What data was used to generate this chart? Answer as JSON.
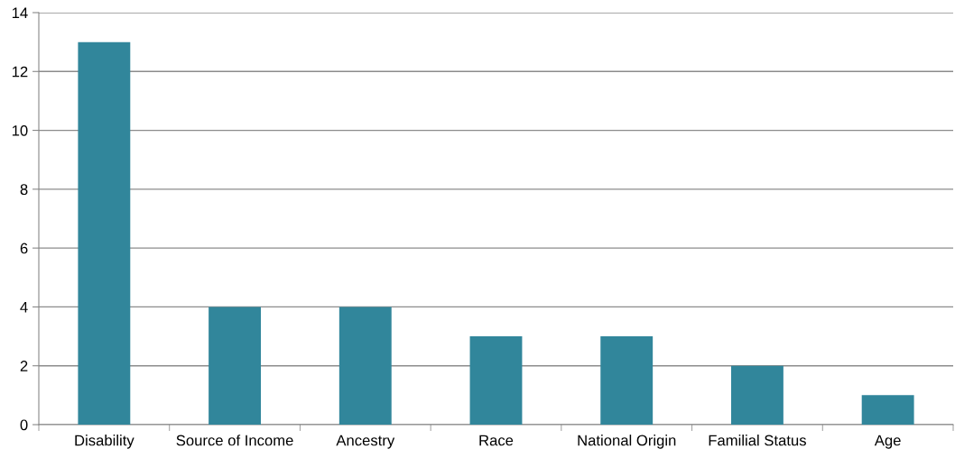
{
  "chart_data": {
    "type": "bar",
    "categories": [
      "Disability",
      "Source of Income",
      "Ancestry",
      "Race",
      "National Origin",
      "Familial Status",
      "Age"
    ],
    "values": [
      13,
      4,
      4,
      3,
      3,
      2,
      1
    ],
    "color": "#31869b",
    "ylim": [
      0,
      14
    ],
    "yticks": [
      0,
      2,
      4,
      6,
      8,
      10,
      12,
      14
    ],
    "grid": "y",
    "legend": false
  }
}
